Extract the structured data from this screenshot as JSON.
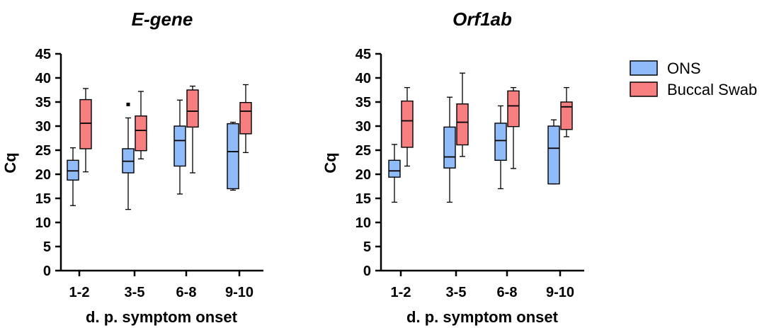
{
  "colors": {
    "ONS": "#8fbcf8",
    "Buccal Swab": "#f77f7f",
    "stroke": "#000000"
  },
  "legend": {
    "items": [
      "ONS",
      "Buccal Swab"
    ],
    "placement": "right"
  },
  "chart_data": [
    {
      "type": "box",
      "title": "E-gene",
      "xlabel": "d. p. symptom onset",
      "ylabel": "Cq",
      "ylim": [
        0,
        45
      ],
      "yticks": [
        0,
        5,
        10,
        15,
        20,
        25,
        30,
        35,
        40,
        45
      ],
      "categories": [
        "1-2",
        "3-5",
        "6-8",
        "9-10"
      ],
      "series": [
        {
          "name": "ONS",
          "boxes": [
            {
              "min": 13.5,
              "q1": 18.8,
              "median": 20.7,
              "q3": 22.9,
              "max": 25.5
            },
            {
              "min": 12.7,
              "q1": 20.3,
              "median": 22.7,
              "q3": 25.3,
              "max": 31.7,
              "outliers": [
                34.5
              ]
            },
            {
              "min": 15.9,
              "q1": 21.7,
              "median": 27.0,
              "q3": 30.0,
              "max": 35.4
            },
            {
              "min": 16.7,
              "q1": 17.0,
              "median": 24.7,
              "q3": 30.5,
              "max": 30.8
            }
          ]
        },
        {
          "name": "Buccal Swab",
          "boxes": [
            {
              "min": 20.5,
              "q1": 25.3,
              "median": 30.6,
              "q3": 35.5,
              "max": 37.8
            },
            {
              "min": 23.2,
              "q1": 24.9,
              "median": 29.1,
              "q3": 32.1,
              "max": 37.2
            },
            {
              "min": 20.3,
              "q1": 29.8,
              "median": 33.1,
              "q3": 37.5,
              "max": 38.3
            },
            {
              "min": 24.5,
              "q1": 28.4,
              "median": 33.1,
              "q3": 34.9,
              "max": 38.6
            }
          ]
        }
      ]
    },
    {
      "type": "box",
      "title": "Orf1ab",
      "xlabel": "d. p. symptom onset",
      "ylabel": "Cq",
      "ylim": [
        0,
        45
      ],
      "yticks": [
        0,
        5,
        10,
        15,
        20,
        25,
        30,
        35,
        40,
        45
      ],
      "categories": [
        "1-2",
        "3-5",
        "6-8",
        "9-10"
      ],
      "series": [
        {
          "name": "ONS",
          "boxes": [
            {
              "min": 14.2,
              "q1": 19.4,
              "median": 20.7,
              "q3": 22.9,
              "max": 26.2
            },
            {
              "min": 14.2,
              "q1": 21.3,
              "median": 23.6,
              "q3": 29.8,
              "max": 36.0
            },
            {
              "min": 17.0,
              "q1": 22.9,
              "median": 27.0,
              "q3": 30.6,
              "max": 34.2
            },
            {
              "min": 18.0,
              "q1": 18.0,
              "median": 25.4,
              "q3": 30.0,
              "max": 31.3
            }
          ]
        },
        {
          "name": "Buccal Swab",
          "boxes": [
            {
              "min": 21.7,
              "q1": 25.6,
              "median": 31.1,
              "q3": 35.2,
              "max": 38.0
            },
            {
              "min": 23.7,
              "q1": 26.1,
              "median": 30.8,
              "q3": 34.6,
              "max": 41.0
            },
            {
              "min": 21.2,
              "q1": 29.9,
              "median": 34.2,
              "q3": 37.3,
              "max": 38.0
            },
            {
              "min": 27.8,
              "q1": 29.3,
              "median": 34.0,
              "q3": 35.0,
              "max": 38.0
            }
          ]
        }
      ]
    }
  ]
}
